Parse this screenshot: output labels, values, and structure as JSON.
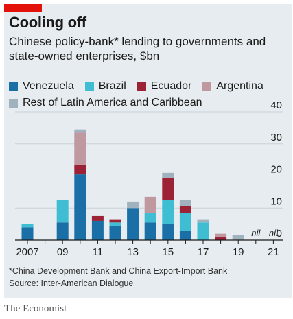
{
  "title": "Cooling off",
  "subtitle": "Chinese policy-bank* lending to governments and state-owned enterprises, $bn",
  "footnote": "*China Development Bank and China Export-Import Bank",
  "source": "Source: Inter-American Dialogue",
  "brand": "The Economist",
  "chart_data": {
    "type": "bar",
    "stacked": true,
    "categories": [
      "2007",
      "2008",
      "2009",
      "2010",
      "2011",
      "2012",
      "2013",
      "2014",
      "2015",
      "2016",
      "2017",
      "2018",
      "2019",
      "2020",
      "2021"
    ],
    "x_tick_labels": [
      "2007",
      "",
      "09",
      "",
      "11",
      "",
      "13",
      "",
      "15",
      "",
      "17",
      "",
      "19",
      "",
      "21"
    ],
    "series": [
      {
        "name": "Venezuela",
        "color": "#1a6fa6",
        "values": [
          4,
          0,
          5.5,
          20.5,
          6,
          4.5,
          10,
          5.5,
          5,
          3,
          0,
          0,
          0,
          0,
          0
        ]
      },
      {
        "name": "Brazil",
        "color": "#3ebdd3",
        "values": [
          1,
          0,
          7,
          0,
          0,
          1,
          0,
          3,
          7.5,
          5.5,
          5.5,
          0,
          0,
          0,
          0
        ]
      },
      {
        "name": "Ecuador",
        "color": "#9b2335",
        "values": [
          0,
          0,
          0,
          3,
          1.5,
          1,
          0,
          0,
          7,
          2,
          0,
          1,
          0,
          0,
          0
        ]
      },
      {
        "name": "Argentina",
        "color": "#bf98a0",
        "values": [
          0,
          0,
          0,
          10,
          0,
          0,
          0,
          5,
          0,
          0,
          0,
          1,
          0,
          0,
          0
        ]
      },
      {
        "name": "Rest of Latin America and Caribbean",
        "color": "#9fb2bd",
        "values": [
          0,
          0,
          0,
          1,
          0,
          0,
          2,
          0,
          1.5,
          2,
          1,
          0,
          1.5,
          0,
          0
        ]
      }
    ],
    "annotations": [
      {
        "category": "2020",
        "text": "nil"
      },
      {
        "category": "2021",
        "text": "nil"
      }
    ],
    "ylim": [
      0,
      40
    ],
    "yticks": [
      0,
      10,
      20,
      30,
      40
    ],
    "y_axis_side": "right",
    "grid": true,
    "legend_position": "top"
  }
}
